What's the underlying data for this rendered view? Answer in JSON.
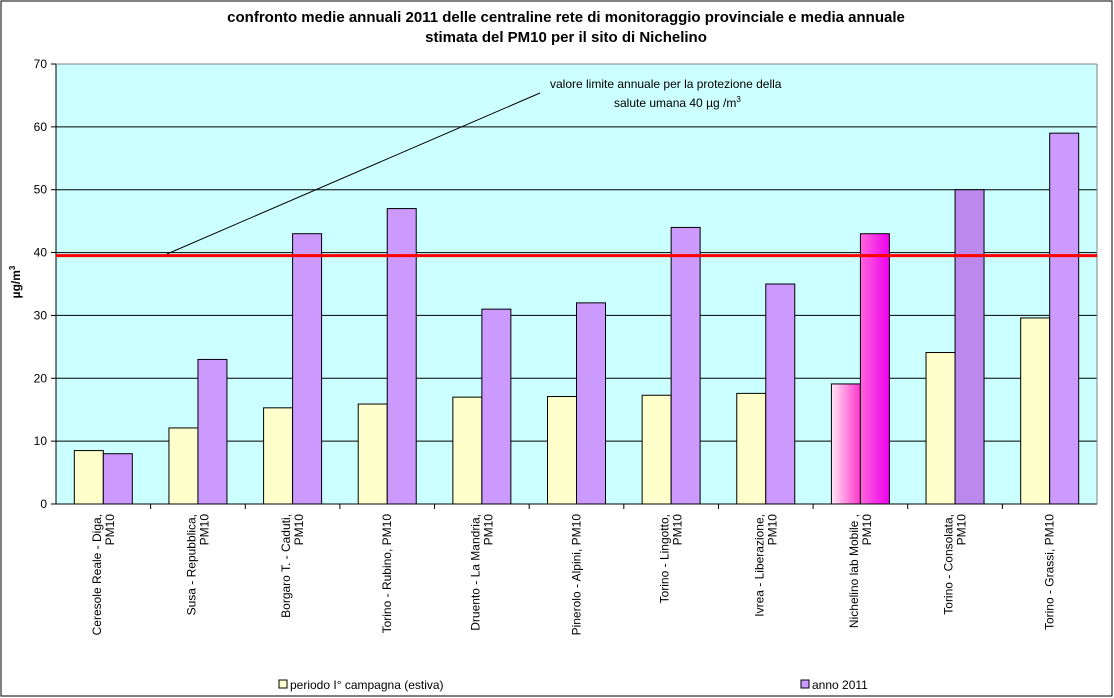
{
  "chart_data": {
    "type": "bar",
    "title_line1": "confronto medie annuali 2011 delle centraline rete di monitoraggio provinciale e media annuale",
    "title_line2": "stimata  del PM10 per il sito di Nichelino",
    "ylabel": "µg/m",
    "ylabel_superscript": "3",
    "xlabel": "",
    "ylim": [
      0,
      70
    ],
    "yticks": [
      0,
      10,
      20,
      30,
      40,
      50,
      60,
      70
    ],
    "grid": true,
    "legend_position": "bottom",
    "categories": [
      [
        "Ceresole Reale - Diga,",
        "PM10"
      ],
      [
        "Susa - Repubblica,",
        "PM10"
      ],
      [
        "Borgaro T. - Caduti,",
        "PM10"
      ],
      [
        "Torino - Rubino, PM10"
      ],
      [
        "Druento - La Mandria,",
        "PM10"
      ],
      [
        "Pinerolo - Alpini,  PM10"
      ],
      [
        "Torino - Lingotto,",
        "PM10"
      ],
      [
        "Ivrea - Liberazione,",
        "PM10"
      ],
      [
        "Nichelino lab Mobile ,",
        "PM10"
      ],
      [
        "Torino - Consolata,",
        "PM10"
      ],
      [
        "Torino - Grassi, PM10"
      ]
    ],
    "series": [
      {
        "name": "periodo I° campagna (estiva)",
        "color": "#FFFFCC",
        "values": [
          8.5,
          12.1,
          15.3,
          15.9,
          17.0,
          17.1,
          17.3,
          17.6,
          19.1,
          24.1,
          29.6
        ]
      },
      {
        "name": "anno 2011",
        "color": "#CC99FF",
        "values": [
          8.0,
          23.0,
          43.0,
          47.0,
          31.0,
          32.0,
          44.0,
          35.0,
          43.0,
          50.0,
          59.0
        ]
      }
    ],
    "limit_line": {
      "value": 40,
      "color": "#FF0000"
    },
    "annotation_line1": "valore limite annuale per la protezione della",
    "annotation_line2": "salute umana 40 µg /m",
    "annotation_superscript": "3",
    "plot_background": "#CCFFFF"
  }
}
